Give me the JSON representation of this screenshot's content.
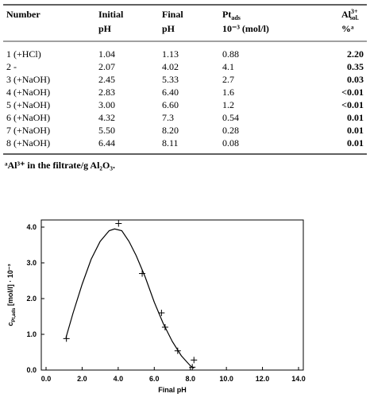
{
  "table": {
    "headers": [
      {
        "line1": "Number"
      },
      {
        "line1": "Initial",
        "line2": "pH"
      },
      {
        "line1": "Final",
        "line2": "pH"
      },
      {
        "main": "Pt",
        "sub": "ads",
        "line2": "10⁻³ (mol/l)"
      },
      {
        "main": "Al",
        "sup": "3+",
        "sub": "sol.",
        "line2": "%ᵃ"
      }
    ],
    "rows": [
      [
        "1 (+HCl)",
        "1.04",
        "1.13",
        "0.88",
        "2.20"
      ],
      [
        "2 -",
        "2.07",
        "4.02",
        "4.1",
        "0.35"
      ],
      [
        "3 (+NaOH)",
        "2.45",
        "5.33",
        "2.7",
        "0.03"
      ],
      [
        "4 (+NaOH)",
        "2.83",
        "6.40",
        "1.6",
        "<0.01"
      ],
      [
        "5 (+NaOH)",
        "3.00",
        "6.60",
        "1.2",
        "<0.01"
      ],
      [
        "6 (+NaOH)",
        "4.32",
        "7.3",
        "0.54",
        "0.01"
      ],
      [
        "7 (+NaOH)",
        "5.50",
        "8.20",
        "0.28",
        "0.01"
      ],
      [
        "8 (+NaOH)",
        "6.44",
        "8.11",
        "0.08",
        "0.01"
      ]
    ],
    "footnote": "ᵃAl³⁺ in the filtrate/g Al₂O₃."
  },
  "chart_data": {
    "type": "scatter",
    "x_label": "Final pH",
    "y_label": {
      "main": "c",
      "sub": "Pt,ads",
      "rest": " [mol/l] · 10⁻³"
    },
    "x": [
      1.13,
      4.02,
      5.33,
      6.4,
      6.6,
      7.3,
      8.2,
      8.11
    ],
    "y": [
      0.88,
      4.1,
      2.7,
      1.6,
      1.2,
      0.54,
      0.28,
      0.08
    ],
    "marker": "+",
    "color": "#000000",
    "fit": {
      "x": [
        1.1,
        1.5,
        2.0,
        2.5,
        3.0,
        3.5,
        3.8,
        4.2,
        4.6,
        5.0,
        5.5,
        6.0,
        6.5,
        7.0,
        7.5,
        8.0,
        8.2
      ],
      "y": [
        0.9,
        1.6,
        2.4,
        3.1,
        3.6,
        3.9,
        3.95,
        3.9,
        3.6,
        3.2,
        2.6,
        1.9,
        1.3,
        0.8,
        0.4,
        0.12,
        0.05
      ]
    },
    "xlim": [
      0,
      14
    ],
    "ylim": [
      0,
      4.2
    ],
    "xticks": [
      {
        "value": 0,
        "label": "0.0"
      },
      {
        "value": 2,
        "label": "2.0"
      },
      {
        "value": 4,
        "label": "4.0"
      },
      {
        "value": 6,
        "label": "6.0"
      },
      {
        "value": 8,
        "label": "8.0"
      },
      {
        "value": 10,
        "label": "10.0"
      },
      {
        "value": 12,
        "label": "12.0"
      },
      {
        "value": 14,
        "label": "14.0"
      }
    ],
    "yticks": [
      {
        "value": 0,
        "label": "0.0"
      },
      {
        "value": 1,
        "label": "1.0"
      },
      {
        "value": 2,
        "label": "2.0"
      },
      {
        "value": 3,
        "label": "3.0"
      },
      {
        "value": 4,
        "label": "4.0"
      }
    ]
  }
}
